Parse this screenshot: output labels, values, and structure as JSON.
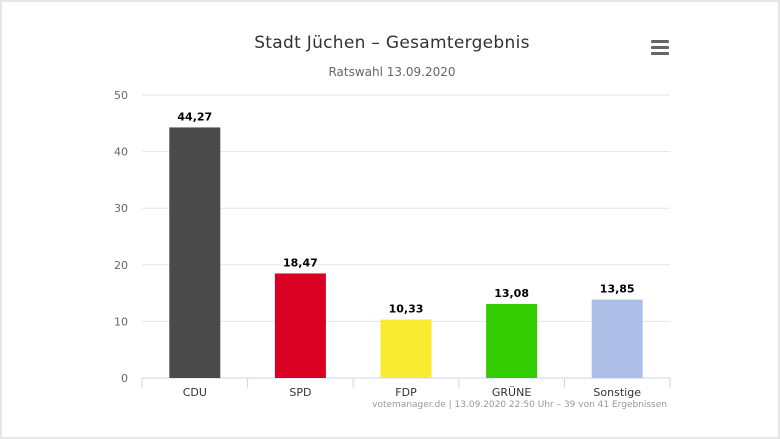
{
  "chart_data": {
    "type": "bar",
    "title": "Stadt Jüchen – Gesamtergebnis",
    "subtitle": "Ratswahl 13.09.2020",
    "categories": [
      "CDU",
      "SPD",
      "FDP",
      "GRÜNE",
      "Sonstige"
    ],
    "values": [
      44.27,
      18.47,
      10.33,
      13.08,
      13.85
    ],
    "data_labels": [
      "44,27",
      "18,47",
      "10,33",
      "13,08",
      "13,85"
    ],
    "colors": [
      "#4a4a4a",
      "#d90022",
      "#f9eb2f",
      "#33cc00",
      "#adbfe6"
    ],
    "ylim": [
      0,
      50
    ],
    "yticks": [
      0,
      10,
      20,
      30,
      40,
      50
    ],
    "xlabel": "",
    "ylabel": "",
    "grid": true,
    "legend": "none"
  },
  "credits": "votemanager.de | 13.09.2020 22:50 Uhr – 39 von 41 Ergebnissen",
  "menu": {
    "icon": "hamburger-menu-icon"
  }
}
